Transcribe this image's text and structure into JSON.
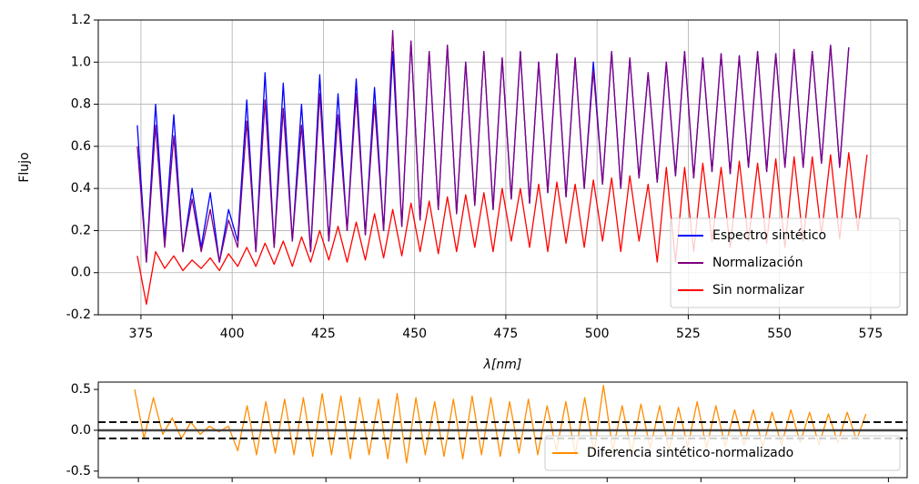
{
  "chart_data": [
    {
      "type": "line",
      "xlabel": "λ[nm]",
      "ylabel": "Flujo",
      "xlim": [
        363.3,
        585
      ],
      "ylim": [
        -0.2,
        1.2
      ],
      "xticks": [
        375,
        400,
        425,
        450,
        475,
        500,
        525,
        550,
        575
      ],
      "yticks": [
        -0.2,
        {
          "value": 0,
          "label": "0.0"
        },
        0.2,
        0.4,
        0.6,
        0.8,
        {
          "value": 1,
          "label": "1.0"
        },
        1.2
      ],
      "grid": true,
      "legend": "lower right",
      "x": [
        374,
        376.5,
        379,
        381.5,
        384,
        386.5,
        389,
        391.5,
        394,
        396.5,
        399,
        401.5,
        404,
        406.5,
        409,
        411.5,
        414,
        416.5,
        419,
        421.5,
        424,
        426.5,
        429,
        431.5,
        434,
        436.5,
        439,
        441.5,
        444,
        446.5,
        449,
        451.5,
        454,
        456.5,
        459,
        461.5,
        464,
        466.5,
        469,
        471.5,
        474,
        476.5,
        479,
        481.5,
        484,
        486.5,
        489,
        491.5,
        494,
        496.5,
        499,
        501.5,
        504,
        506.5,
        509,
        511.5,
        514,
        516.5,
        519,
        521.5,
        524,
        526.5,
        529,
        531.5,
        534,
        536.5,
        539,
        541.5,
        544,
        546.5,
        549,
        551.5,
        554,
        556.5,
        559,
        561.5,
        564,
        566.5,
        569,
        571.5,
        574
      ],
      "series": [
        {
          "name": "Espectro sintético",
          "color": "#0000ff",
          "values": [
            0.7,
            0.05,
            0.8,
            0.15,
            0.75,
            0.1,
            0.4,
            0.12,
            0.38,
            0.05,
            0.3,
            0.15,
            0.82,
            0.1,
            0.95,
            0.12,
            0.9,
            0.15,
            0.8,
            0.1,
            0.94,
            0.15,
            0.85,
            0.2,
            0.92,
            0.18,
            0.88,
            0.2,
            1.05,
            0.22,
            1.1,
            0.25,
            1.05,
            0.3,
            1.08,
            0.28,
            1.0,
            0.32,
            1.05,
            0.3,
            1.02,
            0.35,
            1.05,
            0.33,
            1.0,
            0.38,
            1.04,
            0.36,
            1.02,
            0.4,
            1.0,
            0.42,
            1.05,
            0.4,
            1.02,
            0.45,
            0.95,
            0.43,
            1.0,
            0.46,
            1.05,
            0.45,
            1.02,
            0.48,
            1.04,
            0.47,
            1.03,
            0.5,
            1.05,
            0.48,
            1.04,
            0.5,
            1.06,
            0.5,
            1.05,
            0.52,
            1.08,
            0.5,
            1.07,
            null,
            null
          ]
        },
        {
          "name": "Normalización",
          "color": "#800080",
          "values": [
            0.6,
            0.05,
            0.7,
            0.12,
            0.65,
            0.1,
            0.35,
            0.1,
            0.3,
            0.05,
            0.25,
            0.12,
            0.72,
            0.1,
            0.82,
            0.12,
            0.78,
            0.15,
            0.7,
            0.1,
            0.85,
            0.15,
            0.75,
            0.2,
            0.85,
            0.18,
            0.8,
            0.2,
            1.15,
            0.22,
            1.1,
            0.25,
            1.05,
            0.3,
            1.08,
            0.28,
            1.0,
            0.32,
            1.05,
            0.3,
            1.02,
            0.35,
            1.05,
            0.33,
            1.0,
            0.38,
            1.04,
            0.36,
            1.02,
            0.4,
            0.96,
            0.42,
            1.05,
            0.4,
            1.02,
            0.45,
            0.95,
            0.43,
            1.0,
            0.46,
            1.05,
            0.45,
            1.02,
            0.48,
            1.04,
            0.47,
            1.03,
            0.5,
            1.05,
            0.48,
            1.04,
            0.5,
            1.06,
            0.5,
            1.05,
            0.52,
            1.08,
            0.5,
            1.07,
            null,
            null
          ]
        },
        {
          "name": "Sin normalizar",
          "color": "#ff0000",
          "values": [
            0.08,
            -0.15,
            0.1,
            0.02,
            0.08,
            0.01,
            0.06,
            0.02,
            0.07,
            0.01,
            0.09,
            0.03,
            0.12,
            0.03,
            0.14,
            0.04,
            0.15,
            0.03,
            0.17,
            0.05,
            0.2,
            0.06,
            0.22,
            0.05,
            0.24,
            0.06,
            0.28,
            0.07,
            0.3,
            0.08,
            0.33,
            0.1,
            0.34,
            0.09,
            0.36,
            0.1,
            0.37,
            0.12,
            0.38,
            0.1,
            0.4,
            0.15,
            0.4,
            0.12,
            0.42,
            0.1,
            0.43,
            0.14,
            0.42,
            0.12,
            0.44,
            0.15,
            0.45,
            0.1,
            0.46,
            0.15,
            0.42,
            0.05,
            0.5,
            0.05,
            0.5,
            0.1,
            0.52,
            0.15,
            0.5,
            0.12,
            0.53,
            0.15,
            0.52,
            0.14,
            0.54,
            0.12,
            0.55,
            0.15,
            0.55,
            0.18,
            0.56,
            0.16,
            0.57,
            0.2,
            0.56
          ]
        }
      ]
    },
    {
      "type": "line",
      "xlim": [
        364.3,
        580
      ],
      "ylim": [
        -0.58,
        0.59
      ],
      "xticks": [
        375,
        400,
        425,
        450,
        475,
        500,
        525,
        550,
        575
      ],
      "yticks": [
        -0.5,
        {
          "value": 0,
          "label": "0.0"
        },
        0.5
      ],
      "grid": false,
      "legend": "lower right",
      "hlines": [
        {
          "y": 0,
          "style": "solid"
        },
        {
          "y": 0.1,
          "style": "dashed"
        },
        {
          "y": -0.1,
          "style": "dashed"
        }
      ],
      "x": [
        374,
        376.5,
        379,
        381.5,
        384,
        386.5,
        389,
        391.5,
        394,
        396.5,
        399,
        401.5,
        404,
        406.5,
        409,
        411.5,
        414,
        416.5,
        419,
        421.5,
        424,
        426.5,
        429,
        431.5,
        434,
        436.5,
        439,
        441.5,
        444,
        446.5,
        449,
        451.5,
        454,
        456.5,
        459,
        461.5,
        464,
        466.5,
        469,
        471.5,
        474,
        476.5,
        479,
        481.5,
        484,
        486.5,
        489,
        491.5,
        494,
        496.5,
        499,
        501.5,
        504,
        506.5,
        509,
        511.5,
        514,
        516.5,
        519,
        521.5,
        524,
        526.5,
        529,
        531.5,
        534,
        536.5,
        539,
        541.5,
        544,
        546.5,
        549,
        551.5,
        554,
        556.5,
        559,
        561.5,
        564,
        566.5,
        569,
        571.5,
        574
      ],
      "series": [
        {
          "name": "Diferencia sintético-normalizado",
          "color": "#ff8c00",
          "values": [
            0.5,
            -0.1,
            0.4,
            -0.05,
            0.15,
            -0.1,
            0.1,
            -0.05,
            0.05,
            -0.02,
            0.05,
            -0.25,
            0.3,
            -0.3,
            0.35,
            -0.28,
            0.38,
            -0.3,
            0.4,
            -0.32,
            0.45,
            -0.3,
            0.42,
            -0.35,
            0.4,
            -0.3,
            0.38,
            -0.35,
            0.45,
            -0.4,
            0.4,
            -0.3,
            0.35,
            -0.32,
            0.38,
            -0.35,
            0.42,
            -0.3,
            0.4,
            -0.32,
            0.35,
            -0.28,
            0.38,
            -0.3,
            0.3,
            -0.25,
            0.35,
            -0.3,
            0.4,
            -0.28,
            0.55,
            -0.25,
            0.3,
            -0.28,
            0.32,
            -0.22,
            0.3,
            -0.25,
            0.28,
            -0.2,
            0.35,
            -0.22,
            0.3,
            -0.2,
            0.25,
            -0.18,
            0.25,
            -0.2,
            0.22,
            -0.18,
            0.25,
            -0.15,
            0.22,
            -0.18,
            0.2,
            -0.15,
            0.22,
            -0.12,
            0.2,
            null,
            null
          ]
        }
      ]
    }
  ]
}
